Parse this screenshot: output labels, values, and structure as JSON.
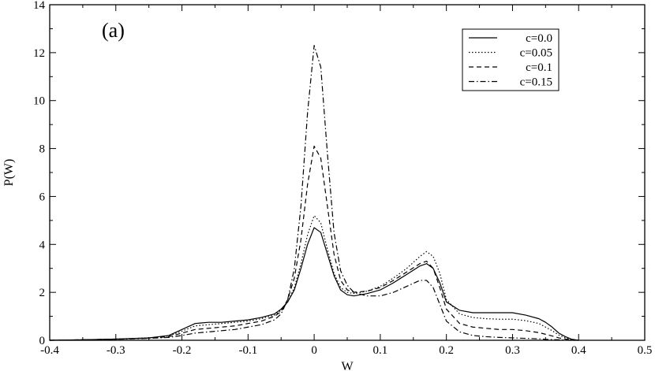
{
  "chart_data": {
    "type": "line",
    "panel_label": "(a)",
    "xlabel": "W",
    "ylabel": "P(W)",
    "xlim": [
      -0.4,
      0.5
    ],
    "ylim": [
      0,
      14
    ],
    "xticks": [
      -0.4,
      -0.3,
      -0.2,
      -0.1,
      0,
      0.1,
      0.2,
      0.3,
      0.4,
      0.5
    ],
    "xtick_labels": [
      "-0.4",
      "-0.3",
      "-0.2",
      "-0.1",
      "0",
      "0.1",
      "0.2",
      "0.3",
      "0.4",
      "0.5"
    ],
    "yticks": [
      0,
      2,
      4,
      6,
      8,
      10,
      12,
      14
    ],
    "ytick_labels": [
      "0",
      "2",
      "4",
      "6",
      "8",
      "10",
      "12",
      "14"
    ],
    "grid": false,
    "legend_position": "top-right",
    "series": [
      {
        "name": "c=0.0",
        "dash": "solid",
        "x": [
          -0.4,
          -0.35,
          -0.3,
          -0.25,
          -0.22,
          -0.2,
          -0.18,
          -0.16,
          -0.14,
          -0.12,
          -0.1,
          -0.08,
          -0.06,
          -0.05,
          -0.04,
          -0.03,
          -0.02,
          -0.01,
          0.0,
          0.01,
          0.02,
          0.03,
          0.04,
          0.05,
          0.06,
          0.08,
          0.1,
          0.12,
          0.14,
          0.16,
          0.17,
          0.18,
          0.19,
          0.2,
          0.22,
          0.24,
          0.26,
          0.28,
          0.3,
          0.32,
          0.34,
          0.35,
          0.36,
          0.37,
          0.38,
          0.39,
          0.4
        ],
        "y": [
          0,
          0.02,
          0.05,
          0.1,
          0.2,
          0.45,
          0.7,
          0.75,
          0.75,
          0.8,
          0.85,
          0.95,
          1.1,
          1.3,
          1.6,
          2.1,
          3.0,
          4.0,
          4.7,
          4.5,
          3.6,
          2.7,
          2.1,
          1.9,
          1.85,
          1.95,
          2.1,
          2.4,
          2.75,
          3.1,
          3.2,
          3.0,
          2.4,
          1.6,
          1.25,
          1.15,
          1.15,
          1.15,
          1.15,
          1.05,
          0.9,
          0.75,
          0.55,
          0.3,
          0.15,
          0.04,
          0
        ]
      },
      {
        "name": "c=0.05",
        "dash": "dotted",
        "x": [
          -0.4,
          -0.35,
          -0.3,
          -0.25,
          -0.22,
          -0.2,
          -0.18,
          -0.16,
          -0.14,
          -0.12,
          -0.1,
          -0.08,
          -0.06,
          -0.05,
          -0.04,
          -0.03,
          -0.02,
          -0.01,
          0.0,
          0.01,
          0.02,
          0.03,
          0.04,
          0.05,
          0.06,
          0.08,
          0.1,
          0.12,
          0.14,
          0.16,
          0.17,
          0.18,
          0.19,
          0.2,
          0.22,
          0.24,
          0.26,
          0.28,
          0.3,
          0.32,
          0.34,
          0.35,
          0.36,
          0.37,
          0.38,
          0.39,
          0.4
        ],
        "y": [
          0,
          0.02,
          0.05,
          0.1,
          0.18,
          0.38,
          0.6,
          0.65,
          0.7,
          0.75,
          0.8,
          0.9,
          1.05,
          1.25,
          1.6,
          2.2,
          3.2,
          4.4,
          5.2,
          4.9,
          3.8,
          2.8,
          2.2,
          2.0,
          1.95,
          2.05,
          2.25,
          2.6,
          3.0,
          3.5,
          3.7,
          3.5,
          2.8,
          1.7,
          1.1,
          0.95,
          0.9,
          0.88,
          0.88,
          0.82,
          0.7,
          0.55,
          0.4,
          0.22,
          0.1,
          0.03,
          0
        ]
      },
      {
        "name": "c=0.1",
        "dash": "dashed",
        "x": [
          -0.4,
          -0.35,
          -0.3,
          -0.25,
          -0.22,
          -0.2,
          -0.18,
          -0.16,
          -0.14,
          -0.12,
          -0.1,
          -0.08,
          -0.06,
          -0.05,
          -0.04,
          -0.03,
          -0.02,
          -0.01,
          0.0,
          0.01,
          0.02,
          0.03,
          0.04,
          0.05,
          0.06,
          0.08,
          0.1,
          0.12,
          0.14,
          0.16,
          0.17,
          0.18,
          0.19,
          0.2,
          0.22,
          0.24,
          0.26,
          0.28,
          0.3,
          0.32,
          0.34,
          0.35,
          0.36,
          0.37,
          0.38,
          0.39,
          0.4
        ],
        "y": [
          0,
          0.02,
          0.05,
          0.09,
          0.15,
          0.3,
          0.45,
          0.5,
          0.55,
          0.6,
          0.7,
          0.8,
          1.0,
          1.2,
          1.7,
          2.6,
          4.2,
          6.5,
          8.1,
          7.6,
          5.6,
          3.6,
          2.5,
          2.1,
          2.0,
          2.05,
          2.2,
          2.5,
          2.85,
          3.2,
          3.3,
          3.0,
          2.2,
          1.3,
          0.7,
          0.55,
          0.5,
          0.45,
          0.45,
          0.4,
          0.32,
          0.25,
          0.18,
          0.1,
          0.05,
          0.02,
          0
        ]
      },
      {
        "name": "c=0.15",
        "dash": "dashdot",
        "x": [
          -0.4,
          -0.35,
          -0.3,
          -0.25,
          -0.22,
          -0.2,
          -0.18,
          -0.16,
          -0.14,
          -0.12,
          -0.1,
          -0.08,
          -0.06,
          -0.05,
          -0.04,
          -0.03,
          -0.02,
          -0.01,
          0.0,
          0.01,
          0.02,
          0.03,
          0.04,
          0.05,
          0.06,
          0.08,
          0.1,
          0.12,
          0.14,
          0.16,
          0.17,
          0.18,
          0.19,
          0.2,
          0.22,
          0.24,
          0.26,
          0.28,
          0.3,
          0.32,
          0.34,
          0.35,
          0.36,
          0.37,
          0.38,
          0.39,
          0.4
        ],
        "y": [
          0,
          0.02,
          0.04,
          0.08,
          0.12,
          0.2,
          0.3,
          0.35,
          0.4,
          0.45,
          0.55,
          0.65,
          0.85,
          1.1,
          1.7,
          3.0,
          5.6,
          9.5,
          12.3,
          11.4,
          7.8,
          4.5,
          2.9,
          2.3,
          2.0,
          1.85,
          1.85,
          2.0,
          2.25,
          2.5,
          2.5,
          2.2,
          1.5,
          0.8,
          0.35,
          0.2,
          0.15,
          0.12,
          0.1,
          0.08,
          0.06,
          0.04,
          0.03,
          0.02,
          0.01,
          0.0,
          0
        ]
      }
    ]
  }
}
